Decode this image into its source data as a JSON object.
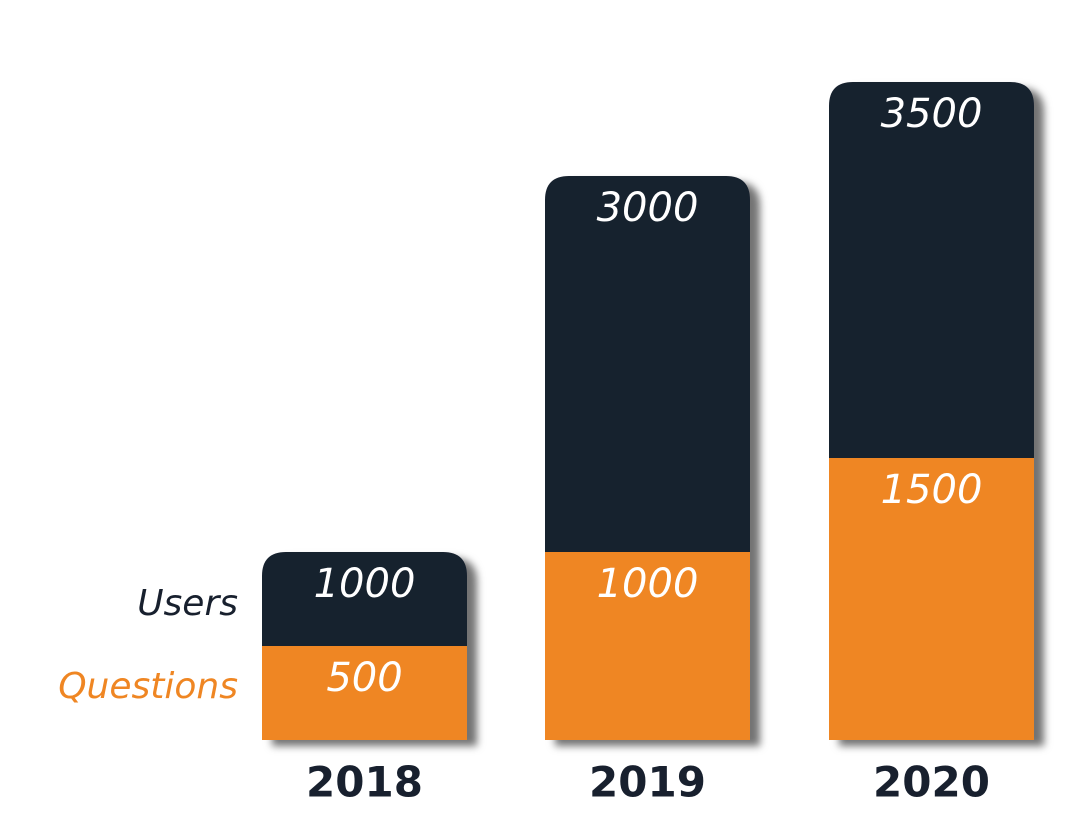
{
  "chart_data": {
    "type": "bar",
    "categories": [
      "2018",
      "2019",
      "2020"
    ],
    "series": [
      {
        "name": "Users",
        "color": "#18202e",
        "values": [
          1000,
          3000,
          3500
        ]
      },
      {
        "name": "Questions",
        "color": "#ef8623",
        "values": [
          500,
          1000,
          1500
        ]
      }
    ],
    "ylim": [
      0,
      3500
    ]
  }
}
